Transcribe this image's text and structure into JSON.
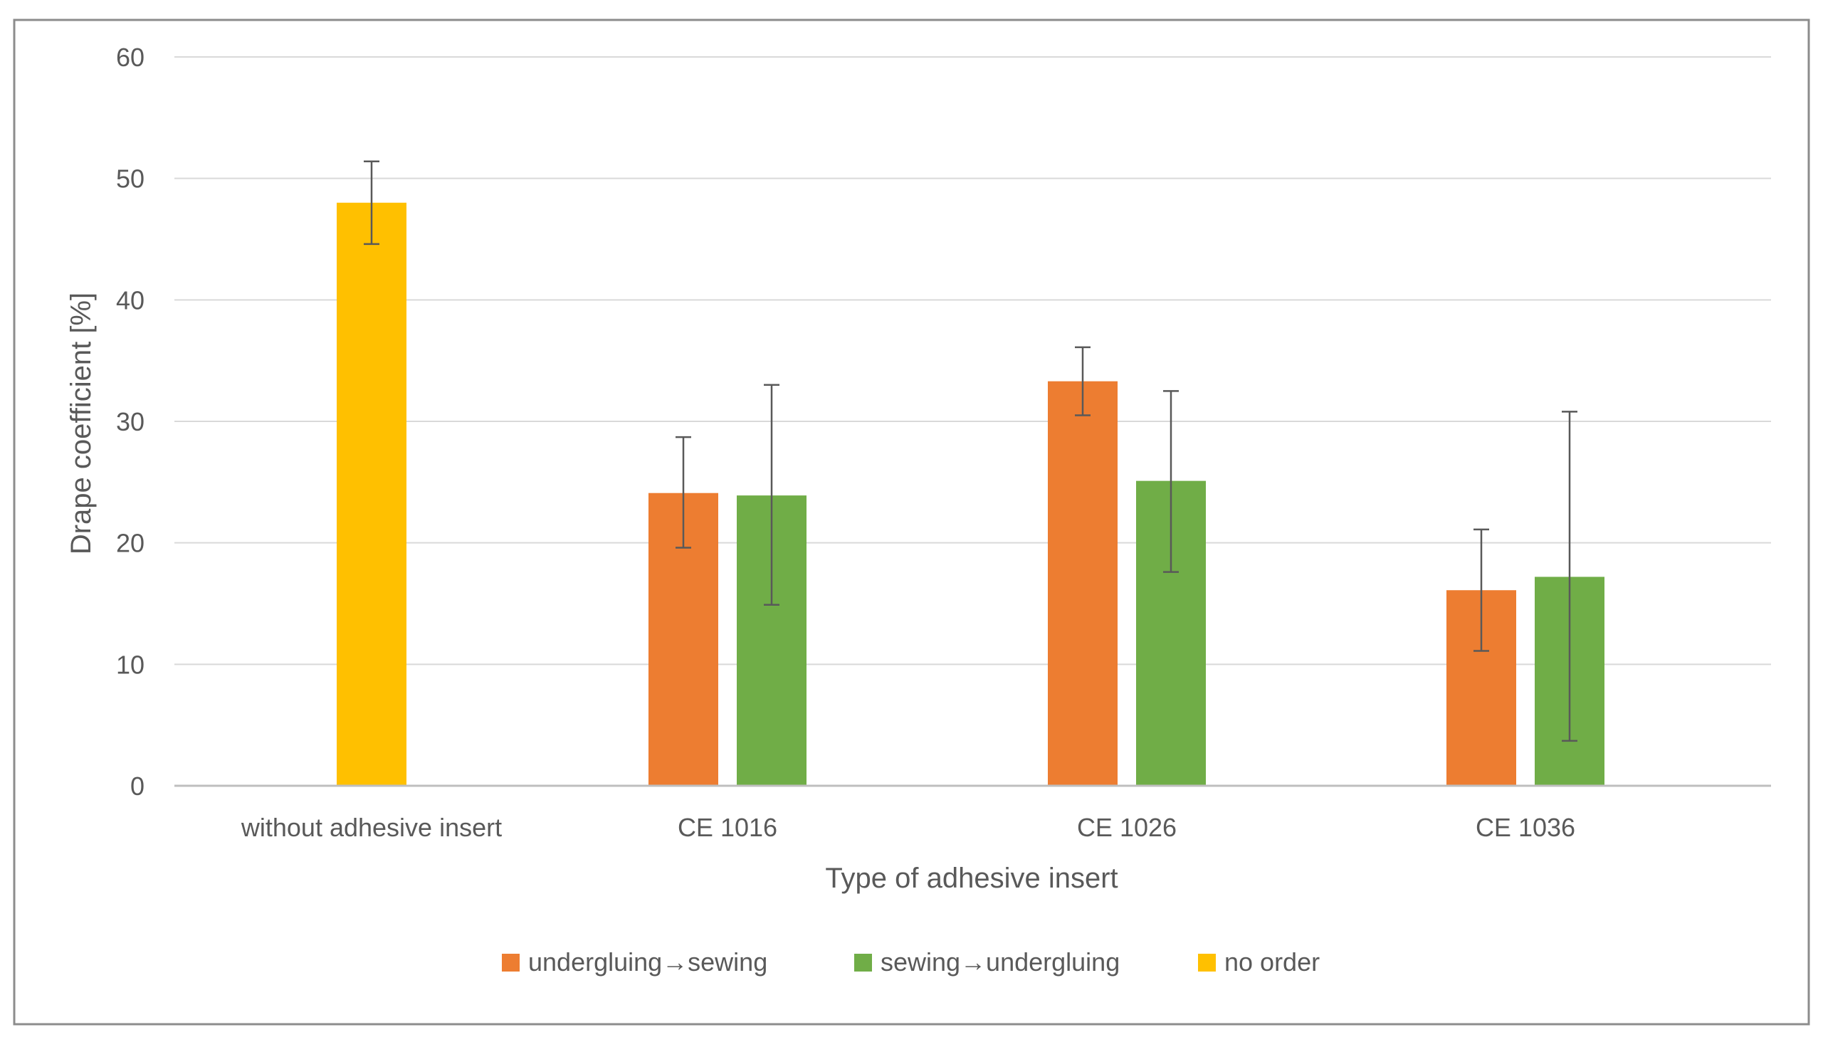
{
  "chart_data": {
    "type": "bar",
    "title": "",
    "xlabel": "Type of adhesive insert",
    "ylabel": "Drape coefficient [%]",
    "ylim": [
      0,
      60
    ],
    "yticks": [
      0,
      10,
      20,
      30,
      40,
      50,
      60
    ],
    "grid": true,
    "legend_position": "bottom",
    "categories": [
      "without adhesive insert",
      "CE 1016",
      "CE 1026",
      "CE 1036"
    ],
    "series": [
      {
        "name": "undergluing→sewing",
        "color": "#ED7D31",
        "values": [
          null,
          24.1,
          33.3,
          16.1
        ],
        "error_low": [
          null,
          19.6,
          30.5,
          11.1
        ],
        "error_high": [
          null,
          28.7,
          36.1,
          21.1
        ]
      },
      {
        "name": "sewing→undergluing",
        "color": "#70AD47",
        "values": [
          null,
          23.9,
          25.1,
          17.2
        ],
        "error_low": [
          null,
          14.9,
          17.6,
          3.7
        ],
        "error_high": [
          null,
          33.0,
          32.5,
          30.8
        ]
      },
      {
        "name": "no order",
        "color": "#FFC000",
        "values": [
          48.0,
          null,
          null,
          null
        ],
        "error_low": [
          44.6,
          null,
          null,
          null
        ],
        "error_high": [
          51.4,
          null,
          null,
          null
        ]
      }
    ]
  }
}
